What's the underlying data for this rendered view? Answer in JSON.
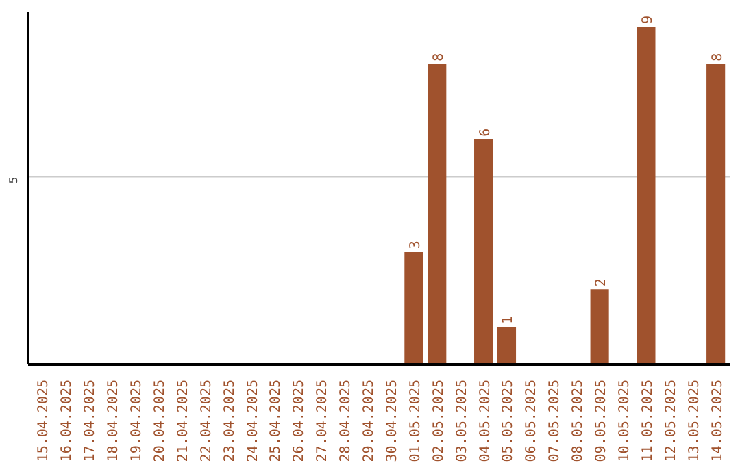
{
  "chart_data": {
    "type": "bar",
    "categories": [
      "15.04.2025",
      "16.04.2025",
      "17.04.2025",
      "18.04.2025",
      "19.04.2025",
      "20.04.2025",
      "21.04.2025",
      "22.04.2025",
      "23.04.2025",
      "24.04.2025",
      "25.04.2025",
      "26.04.2025",
      "27.04.2025",
      "28.04.2025",
      "29.04.2025",
      "30.04.2025",
      "01.05.2025",
      "02.05.2025",
      "03.05.2025",
      "04.05.2025",
      "05.05.2025",
      "06.05.2025",
      "07.05.2025",
      "08.05.2025",
      "09.05.2025",
      "10.05.2025",
      "11.05.2025",
      "12.05.2025",
      "13.05.2025",
      "14.05.2025"
    ],
    "values": [
      null,
      null,
      null,
      null,
      null,
      null,
      null,
      null,
      null,
      null,
      null,
      null,
      null,
      null,
      null,
      null,
      3,
      8,
      null,
      6,
      1,
      null,
      null,
      null,
      2,
      null,
      9,
      null,
      null,
      8
    ],
    "data_labels": true,
    "color": "#a0522d",
    "ylim": [
      0,
      9.4
    ],
    "ref_lines": [
      {
        "axis": "y",
        "value": 5,
        "label": "5",
        "color": "#cccccc"
      }
    ]
  }
}
